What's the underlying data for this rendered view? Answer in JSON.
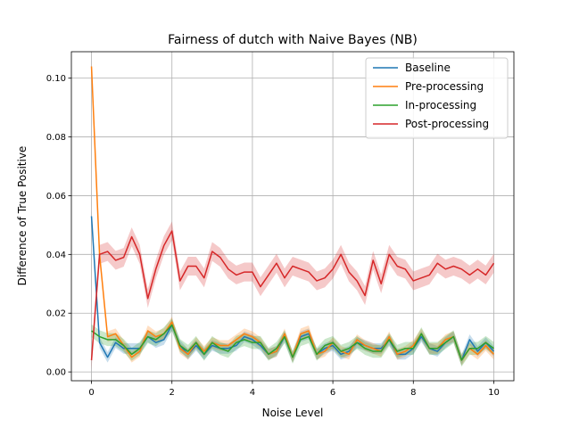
{
  "chart_data": {
    "type": "line",
    "title": "Fairness of dutch with Naive Bayes (NB)",
    "xlabel": "Noise Level",
    "ylabel": "Difference of True Positive",
    "xlim": [
      -0.5,
      10.5
    ],
    "ylim": [
      -0.003,
      0.109
    ],
    "xticks": [
      0,
      2,
      4,
      6,
      8,
      10
    ],
    "xtick_labels": [
      "0",
      "2",
      "4",
      "6",
      "8",
      "10"
    ],
    "yticks": [
      0.0,
      0.02,
      0.04,
      0.06,
      0.08,
      0.1
    ],
    "ytick_labels": [
      "0.00",
      "0.02",
      "0.04",
      "0.06",
      "0.08",
      "0.10"
    ],
    "grid": true,
    "legend_position": "upper right",
    "x": [
      0,
      0.2,
      0.4,
      0.6,
      0.8,
      1.0,
      1.2,
      1.4,
      1.6,
      1.8,
      2.0,
      2.2,
      2.4,
      2.6,
      2.8,
      3.0,
      3.2,
      3.4,
      3.6,
      3.8,
      4.0,
      4.2,
      4.4,
      4.6,
      4.8,
      5.0,
      5.2,
      5.4,
      5.6,
      5.8,
      6.0,
      6.2,
      6.4,
      6.6,
      6.8,
      7.0,
      7.2,
      7.4,
      7.6,
      7.8,
      8.0,
      8.2,
      8.4,
      8.6,
      8.8,
      9.0,
      9.2,
      9.4,
      9.6,
      9.8,
      10.0
    ],
    "series": [
      {
        "name": "Baseline",
        "color": "#1f77b4",
        "values": [
          0.053,
          0.01,
          0.005,
          0.01,
          0.008,
          0.008,
          0.008,
          0.012,
          0.01,
          0.011,
          0.016,
          0.009,
          0.006,
          0.009,
          0.006,
          0.009,
          0.008,
          0.008,
          0.009,
          0.012,
          0.011,
          0.009,
          0.006,
          0.007,
          0.012,
          0.005,
          0.012,
          0.013,
          0.006,
          0.008,
          0.009,
          0.006,
          0.007,
          0.01,
          0.009,
          0.008,
          0.008,
          0.011,
          0.006,
          0.006,
          0.008,
          0.012,
          0.008,
          0.007,
          0.01,
          0.012,
          0.004,
          0.011,
          0.007,
          0.01,
          0.007
        ],
        "spread": 0.0018
      },
      {
        "name": "Pre-processing",
        "color": "#ff7f0e",
        "values": [
          0.104,
          0.04,
          0.012,
          0.013,
          0.009,
          0.005,
          0.007,
          0.014,
          0.012,
          0.013,
          0.017,
          0.008,
          0.006,
          0.01,
          0.007,
          0.01,
          0.009,
          0.009,
          0.011,
          0.013,
          0.012,
          0.01,
          0.006,
          0.007,
          0.013,
          0.005,
          0.013,
          0.014,
          0.006,
          0.007,
          0.01,
          0.007,
          0.006,
          0.011,
          0.009,
          0.008,
          0.007,
          0.012,
          0.006,
          0.007,
          0.009,
          0.013,
          0.008,
          0.008,
          0.011,
          0.012,
          0.004,
          0.008,
          0.006,
          0.009,
          0.006
        ],
        "spread": 0.0018
      },
      {
        "name": "In-processing",
        "color": "#2ca02c",
        "values": [
          0.014,
          0.012,
          0.011,
          0.011,
          0.009,
          0.006,
          0.008,
          0.012,
          0.011,
          0.013,
          0.016,
          0.009,
          0.007,
          0.01,
          0.006,
          0.01,
          0.008,
          0.007,
          0.01,
          0.011,
          0.01,
          0.01,
          0.006,
          0.008,
          0.012,
          0.005,
          0.011,
          0.012,
          0.006,
          0.009,
          0.01,
          0.007,
          0.008,
          0.01,
          0.008,
          0.007,
          0.007,
          0.011,
          0.007,
          0.008,
          0.008,
          0.013,
          0.008,
          0.008,
          0.01,
          0.012,
          0.004,
          0.008,
          0.008,
          0.01,
          0.008
        ],
        "spread": 0.0022
      },
      {
        "name": "Post-processing",
        "color": "#d62728",
        "values": [
          0.004,
          0.04,
          0.041,
          0.038,
          0.039,
          0.046,
          0.04,
          0.025,
          0.035,
          0.043,
          0.048,
          0.031,
          0.036,
          0.036,
          0.032,
          0.041,
          0.039,
          0.035,
          0.033,
          0.034,
          0.034,
          0.029,
          0.033,
          0.037,
          0.032,
          0.036,
          0.035,
          0.034,
          0.031,
          0.032,
          0.035,
          0.04,
          0.034,
          0.031,
          0.026,
          0.038,
          0.03,
          0.04,
          0.036,
          0.035,
          0.031,
          0.032,
          0.033,
          0.037,
          0.035,
          0.036,
          0.035,
          0.033,
          0.035,
          0.033,
          0.037
        ],
        "spread": 0.0032
      }
    ]
  }
}
